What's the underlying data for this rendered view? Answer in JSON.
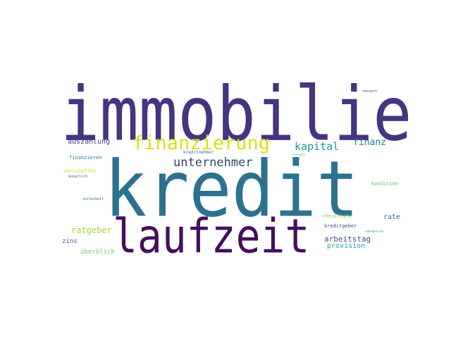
{
  "words": [
    {
      "text": "immobilie",
      "color": "#463480"
    },
    {
      "text": "kredit",
      "color": "#2c728e"
    },
    {
      "text": "laufzeit",
      "color": "#440f5d"
    },
    {
      "text": "finanzierung",
      "color": "#d8e219"
    },
    {
      "text": "unternehmer",
      "color": "#31456c"
    },
    {
      "text": "kapital",
      "color": "#1e9a8a"
    },
    {
      "text": "finanz",
      "color": "#277f8e"
    },
    {
      "text": "auszahlung",
      "color": "#404688"
    },
    {
      "text": "ratgeber",
      "color": "#a0da39"
    },
    {
      "text": "rate",
      "color": "#2c728e"
    },
    {
      "text": "arbeitstag",
      "color": "#3b528b"
    },
    {
      "text": "provision",
      "color": "#22a884"
    },
    {
      "text": "zins",
      "color": "#5b4a95"
    },
    {
      "text": "überblick",
      "color": "#73d055"
    },
    {
      "text": "finanzieren",
      "color": "#2c728e"
    },
    {
      "text": "verschaffen",
      "color": "#c2df23"
    },
    {
      "text": "monatlich",
      "color": "#355f8d"
    },
    {
      "text": "kreditnehmer",
      "color": "#2c728e"
    },
    {
      "text": "zinssatz",
      "color": "#35b779"
    },
    {
      "text": "kondition",
      "color": "#52c569"
    },
    {
      "text": "checkliste",
      "color": "#7ad151"
    },
    {
      "text": "kreditgeber",
      "color": "#414487"
    },
    {
      "text": "zeitarbeit",
      "color": "#2a788e"
    },
    {
      "text": "ressort",
      "color": "#482878"
    },
    {
      "text": "nebenkosten",
      "color": "#2a9d8f"
    }
  ]
}
